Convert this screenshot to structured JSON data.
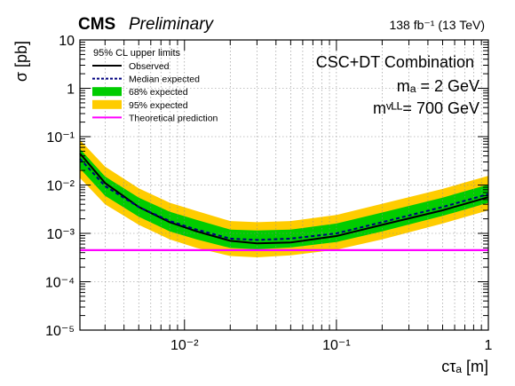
{
  "chart_data": {
    "type": "line",
    "header_left_bold": "CMS",
    "header_left_italic": "Preliminary",
    "header_right": "138 fb⁻¹ (13 TeV)",
    "xlabel": "cτₐ [m]",
    "ylabel": "σ [pb]",
    "x_scale": "log",
    "y_scale": "log",
    "xlim": [
      0.00205,
      1.0
    ],
    "ylim": [
      1e-05,
      10
    ],
    "x_ticks": [
      {
        "value": 0.01,
        "label": "10⁻²"
      },
      {
        "value": 0.1,
        "label": "10⁻¹"
      },
      {
        "value": 1,
        "label": "1"
      }
    ],
    "y_ticks": [
      {
        "value": 10,
        "label": "10"
      },
      {
        "value": 1,
        "label": "1"
      },
      {
        "value": 0.1,
        "label": "10⁻¹"
      },
      {
        "value": 0.01,
        "label": "10⁻²"
      },
      {
        "value": 0.001,
        "label": "10⁻³"
      },
      {
        "value": 0.0001,
        "label": "10⁻⁴"
      },
      {
        "value": 1e-05,
        "label": "10⁻⁵"
      }
    ],
    "grid": true,
    "legend_placement": "top-left",
    "legend_title": "95% CL upper limits",
    "annotations": [
      "CSC+DT Combination",
      "mₐ = 2 GeV",
      "mᵛᴸᴸ= 700 GeV"
    ],
    "x": [
      0.00205,
      0.003,
      0.005,
      0.008,
      0.012,
      0.02,
      0.03,
      0.05,
      0.1,
      0.2,
      0.5,
      1.0
    ],
    "series": [
      {
        "name": "Observed",
        "kind": "line",
        "color": "#000000",
        "style": "solid",
        "values": [
          0.045,
          0.011,
          0.0035,
          0.0017,
          0.0011,
          0.0007,
          0.00062,
          0.00065,
          0.00088,
          0.0015,
          0.003,
          0.0056
        ]
      },
      {
        "name": "Median expected",
        "kind": "line",
        "color": "#00007f",
        "style": "dashed",
        "values": [
          0.035,
          0.0095,
          0.0035,
          0.0018,
          0.0012,
          0.00078,
          0.00073,
          0.00078,
          0.001,
          0.0017,
          0.0035,
          0.0065
        ]
      },
      {
        "name": "68% expected",
        "kind": "band",
        "color": "#00cc00",
        "lower": [
          0.022,
          0.006,
          0.0022,
          0.0011,
          0.00075,
          0.0005,
          0.00047,
          0.00051,
          0.00066,
          0.0011,
          0.0023,
          0.0043
        ],
        "upper": [
          0.056,
          0.015,
          0.0055,
          0.0028,
          0.0019,
          0.0012,
          0.00115,
          0.0012,
          0.0016,
          0.0027,
          0.0055,
          0.0102
        ]
      },
      {
        "name": "95% expected",
        "kind": "band",
        "color": "#ffcc00",
        "lower": [
          0.014,
          0.004,
          0.0015,
          0.00075,
          0.0005,
          0.00034,
          0.00032,
          0.00035,
          0.00046,
          0.00075,
          0.0016,
          0.003
        ],
        "upper": [
          0.085,
          0.024,
          0.0085,
          0.0043,
          0.0029,
          0.0018,
          0.0017,
          0.0018,
          0.0024,
          0.0041,
          0.0083,
          0.0155
        ]
      },
      {
        "name": "Theoretical prediction",
        "kind": "line",
        "color": "#ff00ff",
        "style": "solid",
        "values": [
          0.00045,
          0.00045,
          0.00045,
          0.00045,
          0.00045,
          0.00045,
          0.00045,
          0.00045,
          0.00045,
          0.00045,
          0.00045,
          0.00045
        ]
      }
    ]
  }
}
